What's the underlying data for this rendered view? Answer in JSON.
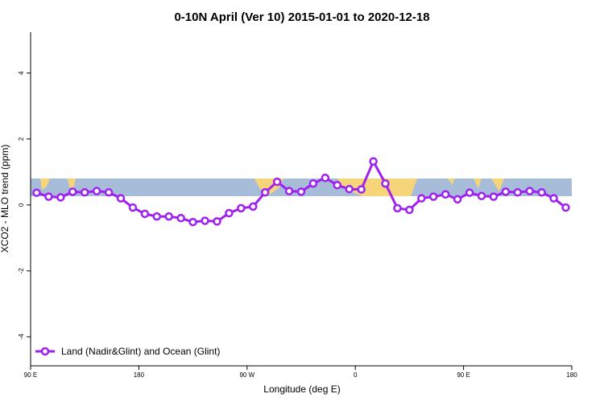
{
  "chart_data": {
    "type": "line",
    "title": "0-10N April (Ver 10)   2015-01-01 to 2020-12-18",
    "x_label": "Longitude (deg E)",
    "y_label": "XCO2 - MLO trend (ppm)",
    "x": [
      95,
      105,
      115,
      125,
      135,
      145,
      155,
      165,
      175,
      185,
      195,
      205,
      215,
      225,
      235,
      245,
      255,
      265,
      275,
      285,
      295,
      305,
      315,
      325,
      335,
      345,
      355,
      365,
      375,
      385,
      395,
      405,
      415,
      425,
      435,
      445,
      455,
      465,
      475,
      485,
      495,
      505,
      515,
      525,
      535
    ],
    "series": [
      {
        "name": "Land (Nadir&Glint) and Ocean (Glint)",
        "color": "#a020f0",
        "values": [
          0.37,
          0.25,
          0.23,
          0.4,
          0.38,
          0.42,
          0.38,
          0.2,
          -0.08,
          -0.27,
          -0.35,
          -0.35,
          -0.4,
          -0.52,
          -0.48,
          -0.5,
          -0.25,
          -0.1,
          -0.05,
          0.38,
          0.7,
          0.42,
          0.4,
          0.65,
          0.82,
          0.6,
          0.48,
          0.47,
          1.32,
          0.65,
          -0.1,
          -0.15,
          0.2,
          0.25,
          0.32,
          0.17,
          0.37,
          0.27,
          0.25,
          0.4,
          0.38,
          0.42,
          0.38,
          0.2,
          -0.08
        ]
      }
    ],
    "xlim": [
      90,
      540
    ],
    "xticks": [
      {
        "value": 90,
        "label": "90 E"
      },
      180,
      {
        "value": 270,
        "label": "90 W"
      },
      {
        "value": 360,
        "label": "0"
      },
      {
        "value": 450,
        "label": "90 E"
      },
      {
        "value": 540,
        "label": "180"
      }
    ],
    "ylim": [
      -4.88,
      5.24
    ],
    "yticks": [
      -4,
      -2,
      0,
      2,
      4
    ],
    "legend": "bottom-left"
  }
}
